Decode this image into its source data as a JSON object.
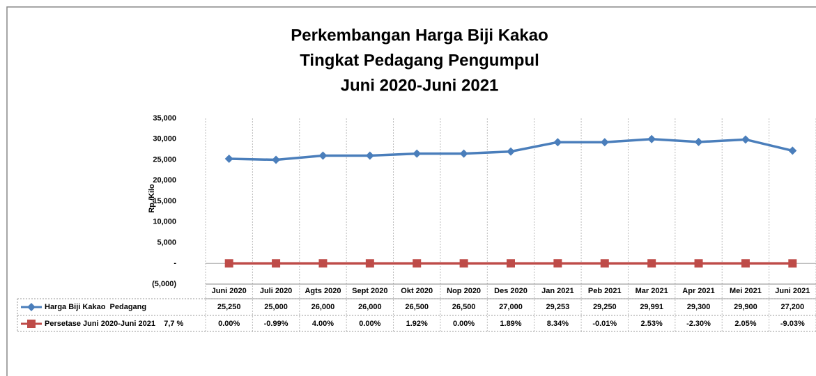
{
  "chart_data": {
    "type": "line",
    "title": [
      "Perkembangan Harga Biji Kakao",
      "Tingkat Pedagang Pengumpul",
      "Juni 2020-Juni 2021"
    ],
    "y_label": "Rp./Kilo",
    "categories": [
      "Juni 2020",
      "Juli 2020",
      "Agts 2020",
      "Sept 2020",
      "Okt 2020",
      "Nop 2020",
      "Des 2020",
      "Jan 2021",
      "Peb 2021",
      "Mar 2021",
      "Apr 2021",
      "Mei 2021",
      "Juni 2021"
    ],
    "series": [
      {
        "name": "Harga Biji Kakao  Pedagang",
        "color": "#4a7ebb",
        "marker": "diamond",
        "values": [
          25250,
          25000,
          26000,
          26000,
          26500,
          26500,
          27000,
          29253,
          29250,
          29991,
          29300,
          29900,
          27200
        ],
        "value_labels": [
          "25,250",
          "25,000",
          "26,000",
          "26,000",
          "26,500",
          "26,500",
          "27,000",
          "29,253",
          "29,250",
          "29,991",
          "29,300",
          "29,900",
          "27,200"
        ]
      },
      {
        "name": "Persetase Juni 2020-Juni 2021    7,7 %",
        "color": "#be4b48",
        "marker": "square",
        "values": [
          0,
          -0.99,
          4,
          0,
          1.92,
          0,
          1.89,
          8.34,
          -0.01,
          2.53,
          -2.3,
          2.05,
          -9.03
        ],
        "value_labels": [
          "0.00%",
          "-0.99%",
          "4.00%",
          "0.00%",
          "1.92%",
          "0.00%",
          "1.89%",
          "8.34%",
          "-0.01%",
          "2.53%",
          "-2.30%",
          "2.05%",
          "-9.03%"
        ]
      }
    ],
    "ylim": [
      -5000,
      35000
    ],
    "yticks": [
      {
        "value": -5000,
        "label": "(5,000)"
      },
      {
        "value": 0,
        "label": "-"
      },
      {
        "value": 5000,
        "label": "5,000"
      },
      {
        "value": 10000,
        "label": "10,000"
      },
      {
        "value": 15000,
        "label": "15,000"
      },
      {
        "value": 20000,
        "label": "20,000"
      },
      {
        "value": 25000,
        "label": "25,000"
      },
      {
        "value": 30000,
        "label": "30,000"
      },
      {
        "value": 35000,
        "label": "35,000"
      }
    ],
    "grid": false
  }
}
